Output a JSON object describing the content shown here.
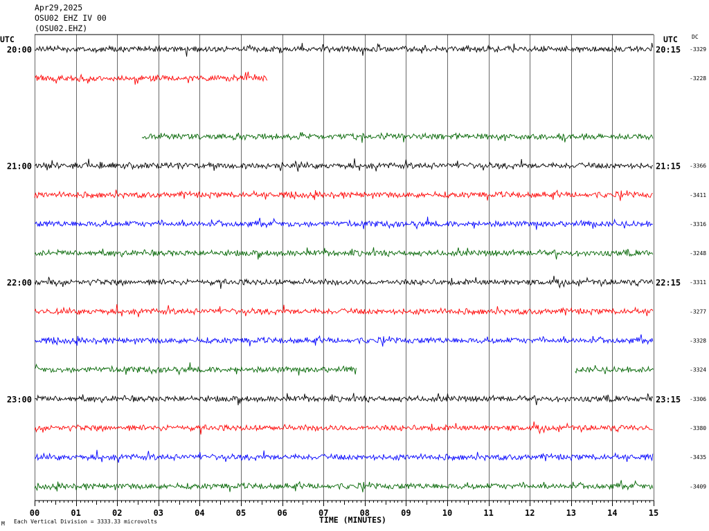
{
  "header": {
    "date": "Apr29,2025",
    "station_line": "OSU02 EHZ IV 00",
    "station_code": "(OSU02.EHZ)"
  },
  "left_utc_label": "UTC",
  "right_utc_label": "UTC",
  "dc_label": "DC",
  "footer": {
    "note": "Each Vertical Division = 3333.33 microvolts",
    "tiny_mark": "M"
  },
  "colors": {
    "black": "#000000",
    "red": "#ff0000",
    "blue": "#0000ff",
    "green": "#006400",
    "grid": "#000000"
  },
  "chart_data": {
    "type": "line",
    "title": "",
    "xlabel": "TIME (MINUTES)",
    "x_ticks": [
      "00",
      "01",
      "02",
      "03",
      "04",
      "05",
      "06",
      "07",
      "08",
      "09",
      "10",
      "11",
      "12",
      "13",
      "14",
      "15"
    ],
    "xlim": [
      0,
      15
    ],
    "hour_labels_left": [
      "20:00",
      "21:00",
      "22:00",
      "23:00"
    ],
    "hour_labels_right": [
      "20:15",
      "21:15",
      "22:15",
      "23:15"
    ],
    "traces": [
      {
        "color": "black",
        "dc": "-3329",
        "start_min": 0,
        "end_min": 15,
        "gaps": []
      },
      {
        "color": "red",
        "dc": "-3228",
        "start_min": 0,
        "end_min": 5.65,
        "gaps": []
      },
      {
        "color": "blue",
        "dc": "",
        "start_min": 0,
        "end_min": 0,
        "gaps": []
      },
      {
        "color": "green",
        "dc": "",
        "start_min": 2.6,
        "end_min": 15,
        "gaps": []
      },
      {
        "color": "black",
        "dc": "-3366",
        "start_min": 0,
        "end_min": 15,
        "gaps": []
      },
      {
        "color": "red",
        "dc": "-3411",
        "start_min": 0,
        "end_min": 15,
        "gaps": []
      },
      {
        "color": "blue",
        "dc": "-3316",
        "start_min": 0,
        "end_min": 15,
        "gaps": []
      },
      {
        "color": "green",
        "dc": "-3248",
        "start_min": 0,
        "end_min": 15,
        "gaps": []
      },
      {
        "color": "black",
        "dc": "-3311",
        "start_min": 0,
        "end_min": 15,
        "gaps": []
      },
      {
        "color": "red",
        "dc": "-3277",
        "start_min": 0,
        "end_min": 15,
        "gaps": []
      },
      {
        "color": "blue",
        "dc": "-3328",
        "start_min": 0,
        "end_min": 15,
        "gaps": []
      },
      {
        "color": "green",
        "dc": "-3324",
        "start_min": 0,
        "end_min": 15,
        "gaps": [
          [
            7.8,
            13.1
          ]
        ]
      },
      {
        "color": "black",
        "dc": "-3306",
        "start_min": 0,
        "end_min": 15,
        "gaps": []
      },
      {
        "color": "red",
        "dc": "-3380",
        "start_min": 0,
        "end_min": 15,
        "gaps": []
      },
      {
        "color": "blue",
        "dc": "-3435",
        "start_min": 0,
        "end_min": 15,
        "gaps": []
      },
      {
        "color": "green",
        "dc": "-3409",
        "start_min": 0,
        "end_min": 15,
        "gaps": []
      }
    ]
  }
}
